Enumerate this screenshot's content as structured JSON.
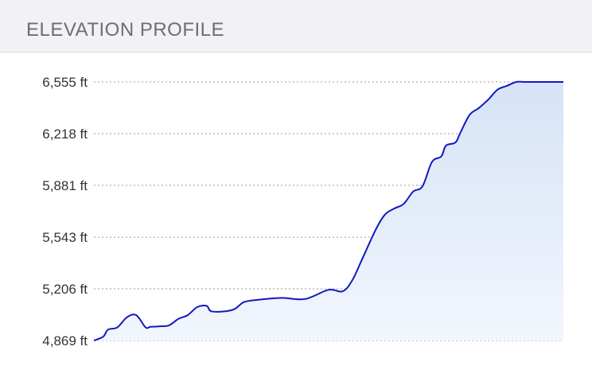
{
  "header": {
    "title": "ELEVATION PROFILE"
  },
  "chart_data": {
    "type": "area",
    "title": "",
    "xlabel": "",
    "ylabel": "",
    "ylim": [
      4869,
      6555
    ],
    "yticks": [
      {
        "value": 6555,
        "label": "6,555 ft"
      },
      {
        "value": 6218,
        "label": "6,218 ft"
      },
      {
        "value": 5881,
        "label": "5,881 ft"
      },
      {
        "value": 5543,
        "label": "5,543 ft"
      },
      {
        "value": 5206,
        "label": "5,206 ft"
      },
      {
        "value": 4869,
        "label": "4,869 ft"
      }
    ],
    "grid": true,
    "x": [
      0,
      0.02,
      0.03,
      0.05,
      0.07,
      0.09,
      0.11,
      0.12,
      0.14,
      0.16,
      0.18,
      0.2,
      0.22,
      0.24,
      0.25,
      0.28,
      0.3,
      0.32,
      0.35,
      0.4,
      0.45,
      0.5,
      0.53,
      0.55,
      0.57,
      0.6,
      0.62,
      0.64,
      0.66,
      0.68,
      0.7,
      0.72,
      0.74,
      0.75,
      0.77,
      0.78,
      0.8,
      0.82,
      0.84,
      0.86,
      0.88,
      0.9,
      0.92,
      0.94,
      0.96,
      0.98,
      1.0
    ],
    "values": [
      4869,
      4895,
      4940,
      4955,
      5020,
      5035,
      4955,
      4958,
      4962,
      4968,
      5010,
      5035,
      5087,
      5095,
      5060,
      5060,
      5075,
      5120,
      5135,
      5147,
      5140,
      5200,
      5190,
      5260,
      5390,
      5590,
      5690,
      5730,
      5760,
      5840,
      5875,
      6033,
      6070,
      6140,
      6160,
      6220,
      6339,
      6385,
      6440,
      6505,
      6530,
      6555,
      6555,
      6555,
      6555,
      6555,
      6555
    ],
    "colors": {
      "line": "#1418c0",
      "fill_top": "#d6e3f6",
      "fill_bottom": "#f2f6fd",
      "grid": "#bbbbbb"
    }
  }
}
